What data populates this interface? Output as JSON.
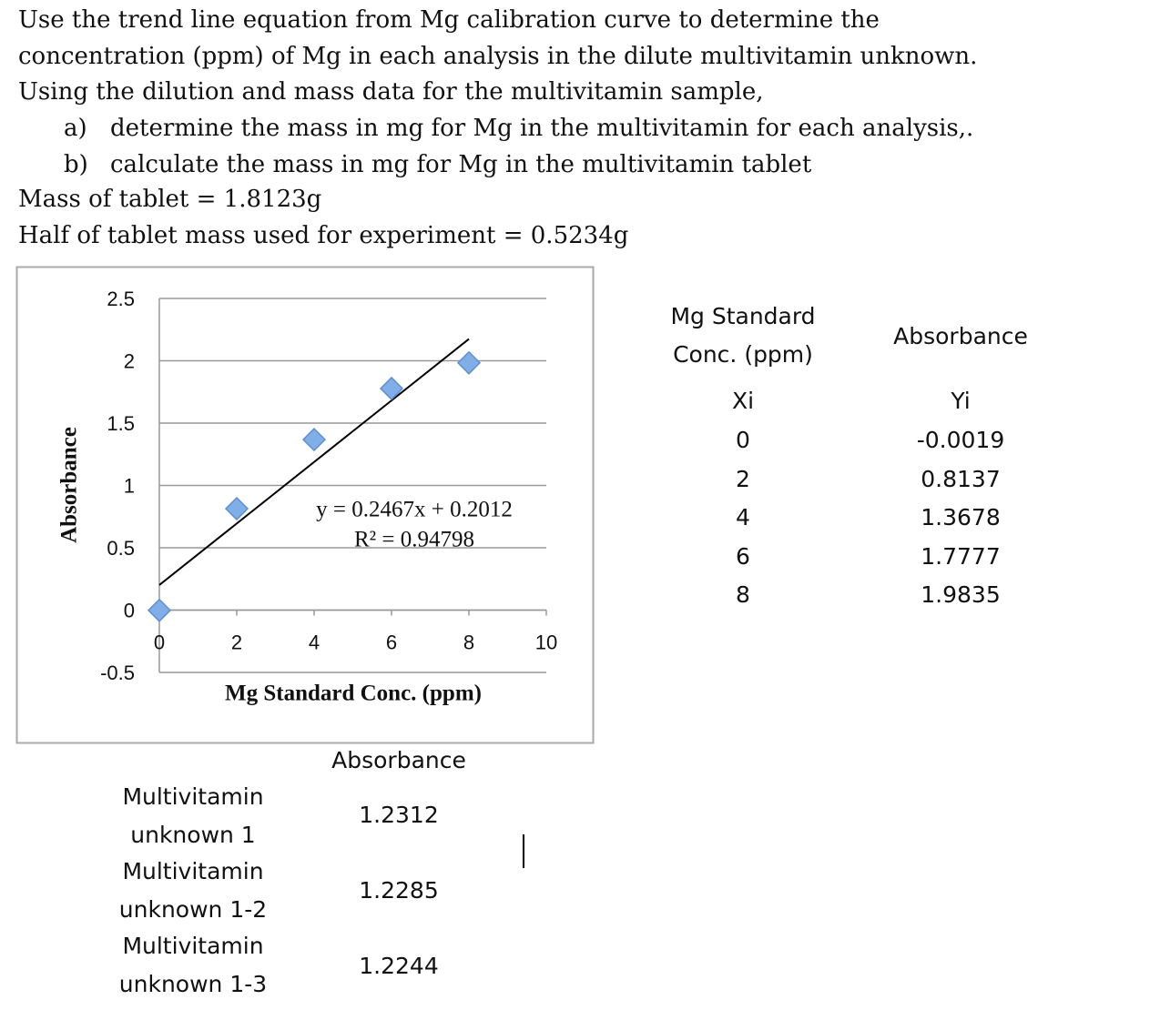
{
  "instructions": [
    "Use the trend line equation from Mg calibration curve to determine the",
    "concentration (ppm) of Mg in each analysis in the dilute multivitamin unknown.",
    "Using the dilution and mass data for the multivitamin sample,"
  ],
  "tasks": [
    {
      "label": "a)",
      "text": "determine the mass in mg for Mg in the multivitamin for each analysis,."
    },
    {
      "label": "b)",
      "text": "calculate the mass in mg for Mg in the multivitamin tablet"
    }
  ],
  "given": [
    "Mass of tablet = 1.8123g",
    "Half of tablet mass used for experiment = 0.5234g"
  ],
  "chart_data": {
    "type": "scatter",
    "x_label": "Mg Standard Conc. (ppm)",
    "y_label": "Absorbance",
    "x": [
      0,
      2,
      4,
      6,
      8
    ],
    "values": [
      -0.0019,
      0.8137,
      1.3678,
      1.7777,
      1.9835
    ],
    "color": "#80aee6",
    "xlim": [
      0,
      10
    ],
    "xticks": [
      0,
      2,
      4,
      6,
      8,
      10
    ],
    "ylim": [
      -0.5,
      2.5
    ],
    "yticks": [
      -0.5,
      0,
      0.5,
      1,
      1.5,
      2,
      2.5
    ],
    "grid": true,
    "trendline": {
      "slope": 0.2467,
      "intercept": 0.2012
    },
    "annotations": [
      "y = 0.2467x + 0.2012",
      "R² = 0.94798"
    ]
  },
  "standards_table": {
    "headers": [
      "Mg Standard Conc. (ppm)",
      "Absorbance"
    ],
    "subheaders": [
      "Xi",
      "Yi"
    ],
    "rows": [
      [
        0,
        -0.0019
      ],
      [
        2,
        0.8137
      ],
      [
        4,
        1.3678
      ],
      [
        6,
        1.7777
      ],
      [
        8,
        1.9835
      ]
    ]
  },
  "unknowns_table": {
    "header": "Absorbance",
    "rows": [
      [
        "Multivitamin unknown 1",
        1.2312
      ],
      [
        "Multivitamin unknown 1-2",
        1.2285
      ],
      [
        "Multivitamin unknown 1-3",
        1.2244
      ]
    ]
  }
}
